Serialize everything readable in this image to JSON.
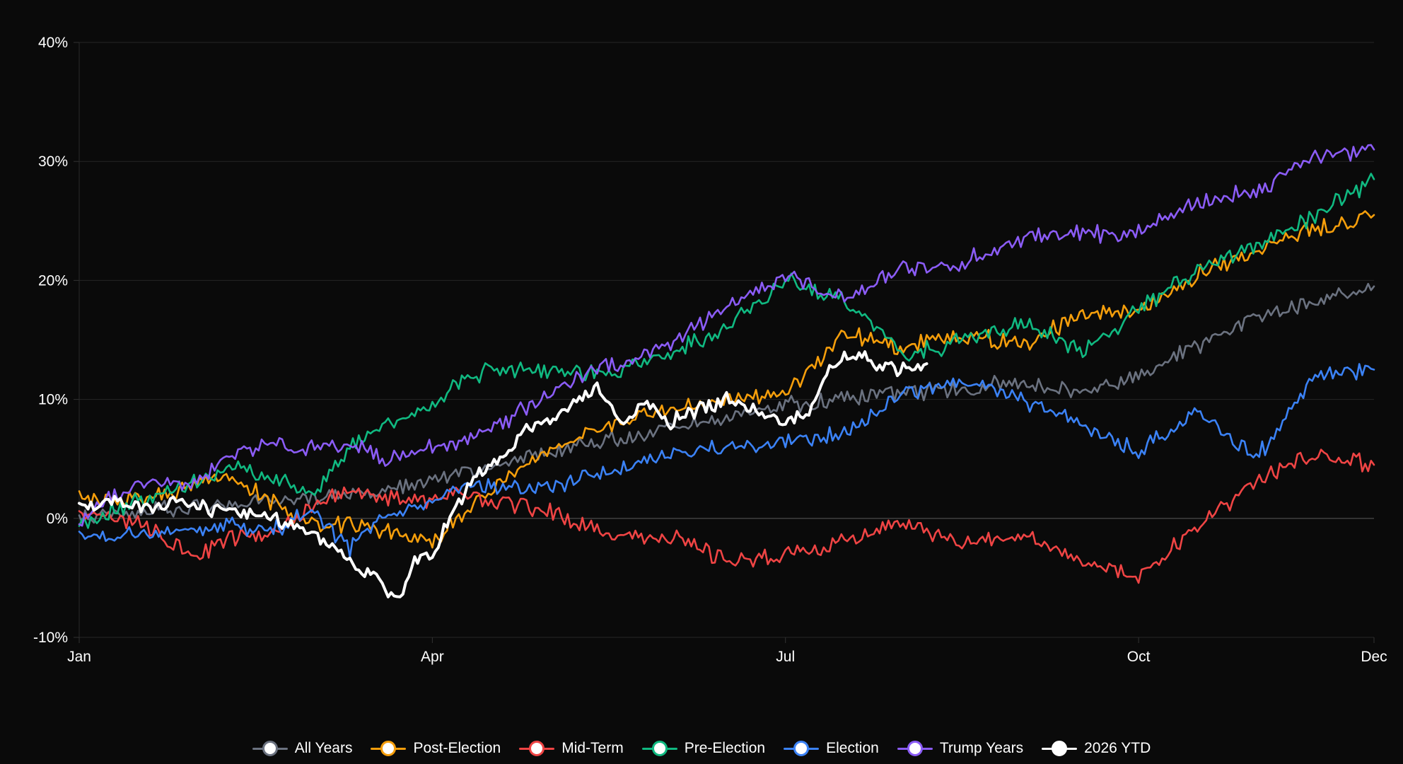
{
  "chart_data": {
    "type": "line",
    "title": "",
    "xlabel": "",
    "ylabel": "",
    "x_tick_labels": [
      "Jan",
      "Apr",
      "Jul",
      "Oct",
      "Dec"
    ],
    "x_tick_months": [
      0,
      3,
      6,
      9,
      11
    ],
    "y_tick_labels": [
      "-10%",
      "0%",
      "10%",
      "20%",
      "30%",
      "40%"
    ],
    "ylim": [
      -10,
      40
    ],
    "xlim_months": [
      0,
      11
    ],
    "grid": "horizontal",
    "legend_position": "bottom-center",
    "series": [
      {
        "name": "All Years",
        "color": "#6b7280",
        "x": [
          0,
          0.5,
          1,
          1.5,
          2,
          2.5,
          3,
          3.5,
          4,
          4.5,
          5,
          5.5,
          6,
          6.5,
          7,
          7.5,
          8,
          8.5,
          9,
          9.5,
          10,
          10.5,
          11
        ],
        "y": [
          0,
          0.5,
          1,
          1.5,
          1.8,
          2.3,
          3,
          4.5,
          5.5,
          6.5,
          7.5,
          8.5,
          9.5,
          10,
          10.5,
          11,
          11.5,
          10.5,
          12,
          14.5,
          17,
          18,
          19.5
        ]
      },
      {
        "name": "Post-Election",
        "color": "#f59e0b",
        "x": [
          0,
          0.5,
          1,
          1.3,
          1.6,
          2,
          2.3,
          2.6,
          3,
          3.3,
          3.6,
          4,
          4.5,
          5,
          5.5,
          6,
          6.5,
          7,
          7.5,
          8,
          8.5,
          9,
          9.5,
          10,
          10.5,
          11
        ],
        "y": [
          1.5,
          1.5,
          3,
          3.5,
          1.5,
          -0.5,
          -0.5,
          -1,
          -2,
          1,
          3,
          6,
          8,
          9,
          10,
          10.5,
          15.5,
          14.5,
          15.5,
          14.5,
          17,
          17.5,
          20.5,
          22.5,
          24.5,
          25.5
        ]
      },
      {
        "name": "Mid-Term",
        "color": "#ef4444",
        "x": [
          0,
          0.5,
          1,
          1.3,
          1.6,
          2,
          2.3,
          2.6,
          3,
          3.3,
          3.6,
          4,
          4.5,
          5,
          5.5,
          6,
          6.5,
          7,
          7.5,
          8,
          8.5,
          9,
          9.5,
          10,
          10.5,
          11
        ],
        "y": [
          0.5,
          -0.5,
          -3,
          -1.5,
          -1.5,
          1,
          2.5,
          1.5,
          1.5,
          2,
          1.5,
          0.5,
          -1.5,
          -1.5,
          -3.5,
          -3,
          -2,
          -0.5,
          -2,
          -1.5,
          -3.5,
          -5,
          -0.5,
          3,
          5.5,
          4.5
        ]
      },
      {
        "name": "Pre-Election",
        "color": "#10b981",
        "x": [
          0,
          0.5,
          1,
          1.3,
          1.6,
          2,
          2.3,
          2.6,
          3,
          3.3,
          3.6,
          4,
          4.5,
          5,
          5.5,
          6,
          6.5,
          7,
          7.5,
          8,
          8.5,
          9,
          9.5,
          10,
          10.5,
          11
        ],
        "y": [
          -0.5,
          1.5,
          3,
          4.5,
          3.5,
          2,
          6,
          8,
          9.5,
          12,
          12.5,
          12.5,
          12,
          14,
          16,
          20,
          18.5,
          13.5,
          15,
          16.5,
          14,
          17.5,
          21,
          23,
          25.5,
          28.5
        ]
      },
      {
        "name": "Election",
        "color": "#3b82f6",
        "x": [
          0,
          0.5,
          1,
          1.3,
          1.6,
          2,
          2.3,
          2.6,
          3,
          3.3,
          3.6,
          4,
          4.5,
          5,
          5.5,
          6,
          6.5,
          7,
          7.5,
          8,
          8.5,
          9,
          9.5,
          10,
          10.5,
          11
        ],
        "y": [
          -1.5,
          -1.5,
          -1,
          -0.5,
          -1,
          0.5,
          -2.5,
          0,
          1.5,
          3,
          2.5,
          2.5,
          4,
          5.5,
          6,
          6.5,
          7,
          10.5,
          11.5,
          10,
          8,
          5.5,
          9,
          5,
          12,
          12.5
        ]
      },
      {
        "name": "Trump Years",
        "color": "#8b5cf6",
        "x": [
          0,
          0.5,
          1,
          1.3,
          1.6,
          2,
          2.3,
          2.6,
          3,
          3.3,
          3.6,
          4,
          4.5,
          5,
          5.5,
          6,
          6.5,
          7,
          7.5,
          8,
          8.5,
          9,
          9.5,
          10,
          10.5,
          11
        ],
        "y": [
          0,
          3,
          3,
          5.5,
          6,
          6,
          6.5,
          5,
          6,
          6.5,
          8,
          10.5,
          13,
          14.5,
          18,
          20.5,
          18.5,
          21,
          21.5,
          23.5,
          24,
          24,
          26.5,
          27.5,
          30.5,
          31
        ]
      },
      {
        "name": "2026 YTD",
        "color": "#ffffff",
        "x": [
          0,
          0.3,
          0.6,
          0.9,
          1.2,
          1.5,
          1.8,
          2.1,
          2.4,
          2.55,
          2.7,
          2.85,
          3,
          3.2,
          3.4,
          3.6,
          3.8,
          4.1,
          4.4,
          4.6,
          4.8,
          5.0,
          5.2,
          5.5,
          5.8,
          6.0,
          6.2,
          6.4,
          6.6,
          6.8,
          7.0,
          7.2
        ],
        "y": [
          1,
          1.5,
          1,
          1.5,
          0.5,
          0.5,
          -0.5,
          -2,
          -4.5,
          -5,
          -7,
          -3.5,
          -3,
          1,
          4,
          5,
          7.5,
          9,
          11,
          8,
          10,
          8,
          9,
          10,
          9,
          8,
          9,
          13,
          14,
          13,
          12.5,
          13
        ]
      }
    ]
  }
}
